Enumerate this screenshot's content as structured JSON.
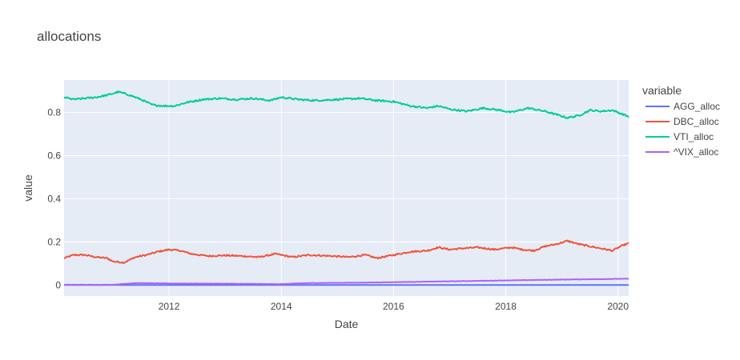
{
  "chart_data": {
    "type": "line",
    "title": "allocations",
    "xlabel": "Date",
    "ylabel": "value",
    "xlim": [
      2010.13,
      2020.19
    ],
    "ylim": [
      -0.05,
      0.95
    ],
    "x_ticks": [
      2012,
      2014,
      2016,
      2018,
      2020
    ],
    "y_ticks": [
      0,
      0.2,
      0.4,
      0.6,
      0.8
    ],
    "grid": true,
    "legend": {
      "title": "variable",
      "position": "right"
    },
    "series": [
      {
        "name": "AGG_alloc",
        "color": "#636efa",
        "points": [
          [
            2010.13,
            0.001
          ],
          [
            2020.19,
            0.001
          ]
        ]
      },
      {
        "name": "DBC_alloc",
        "color": "#EF553B",
        "points": [
          [
            2010.13,
            0.125
          ],
          [
            2010.3,
            0.14
          ],
          [
            2010.5,
            0.14
          ],
          [
            2010.7,
            0.13
          ],
          [
            2010.9,
            0.125
          ],
          [
            2011.0,
            0.11
          ],
          [
            2011.2,
            0.105
          ],
          [
            2011.4,
            0.13
          ],
          [
            2011.6,
            0.14
          ],
          [
            2011.8,
            0.155
          ],
          [
            2012.0,
            0.165
          ],
          [
            2012.2,
            0.16
          ],
          [
            2012.4,
            0.145
          ],
          [
            2012.7,
            0.135
          ],
          [
            2013.0,
            0.138
          ],
          [
            2013.3,
            0.135
          ],
          [
            2013.6,
            0.13
          ],
          [
            2013.9,
            0.145
          ],
          [
            2014.2,
            0.13
          ],
          [
            2014.5,
            0.14
          ],
          [
            2014.9,
            0.135
          ],
          [
            2015.2,
            0.13
          ],
          [
            2015.5,
            0.14
          ],
          [
            2015.7,
            0.125
          ],
          [
            2016.0,
            0.14
          ],
          [
            2016.3,
            0.155
          ],
          [
            2016.6,
            0.16
          ],
          [
            2016.8,
            0.175
          ],
          [
            2017.0,
            0.165
          ],
          [
            2017.2,
            0.17
          ],
          [
            2017.5,
            0.175
          ],
          [
            2017.8,
            0.165
          ],
          [
            2018.1,
            0.175
          ],
          [
            2018.3,
            0.165
          ],
          [
            2018.5,
            0.16
          ],
          [
            2018.7,
            0.18
          ],
          [
            2018.9,
            0.19
          ],
          [
            2019.1,
            0.205
          ],
          [
            2019.3,
            0.19
          ],
          [
            2019.5,
            0.18
          ],
          [
            2019.7,
            0.17
          ],
          [
            2019.9,
            0.16
          ],
          [
            2020.05,
            0.18
          ],
          [
            2020.19,
            0.195
          ]
        ]
      },
      {
        "name": "VTI_alloc",
        "color": "#00cc96",
        "points": [
          [
            2010.13,
            0.87
          ],
          [
            2010.3,
            0.86
          ],
          [
            2010.5,
            0.865
          ],
          [
            2010.7,
            0.87
          ],
          [
            2010.9,
            0.88
          ],
          [
            2011.1,
            0.895
          ],
          [
            2011.3,
            0.88
          ],
          [
            2011.5,
            0.86
          ],
          [
            2011.7,
            0.835
          ],
          [
            2011.9,
            0.83
          ],
          [
            2012.1,
            0.83
          ],
          [
            2012.3,
            0.845
          ],
          [
            2012.6,
            0.86
          ],
          [
            2012.9,
            0.865
          ],
          [
            2013.2,
            0.86
          ],
          [
            2013.5,
            0.865
          ],
          [
            2013.8,
            0.855
          ],
          [
            2014.0,
            0.87
          ],
          [
            2014.3,
            0.86
          ],
          [
            2014.6,
            0.855
          ],
          [
            2015.0,
            0.86
          ],
          [
            2015.4,
            0.865
          ],
          [
            2015.7,
            0.855
          ],
          [
            2016.0,
            0.85
          ],
          [
            2016.3,
            0.83
          ],
          [
            2016.6,
            0.82
          ],
          [
            2016.8,
            0.83
          ],
          [
            2017.0,
            0.815
          ],
          [
            2017.3,
            0.805
          ],
          [
            2017.6,
            0.82
          ],
          [
            2017.9,
            0.81
          ],
          [
            2018.1,
            0.8
          ],
          [
            2018.4,
            0.82
          ],
          [
            2018.7,
            0.805
          ],
          [
            2018.9,
            0.79
          ],
          [
            2019.1,
            0.775
          ],
          [
            2019.3,
            0.785
          ],
          [
            2019.5,
            0.81
          ],
          [
            2019.7,
            0.805
          ],
          [
            2019.9,
            0.81
          ],
          [
            2020.1,
            0.79
          ],
          [
            2020.19,
            0.78
          ]
        ]
      },
      {
        "name": "^VIX_alloc",
        "color": "#ab63fa",
        "points": [
          [
            2010.13,
            0.002
          ],
          [
            2011.0,
            0.002
          ],
          [
            2011.4,
            0.01
          ],
          [
            2012.0,
            0.008
          ],
          [
            2013.0,
            0.007
          ],
          [
            2014.0,
            0.005
          ],
          [
            2014.5,
            0.01
          ],
          [
            2015.5,
            0.012
          ],
          [
            2016.0,
            0.014
          ],
          [
            2017.0,
            0.018
          ],
          [
            2018.0,
            0.022
          ],
          [
            2019.0,
            0.026
          ],
          [
            2020.19,
            0.03
          ]
        ]
      }
    ]
  }
}
